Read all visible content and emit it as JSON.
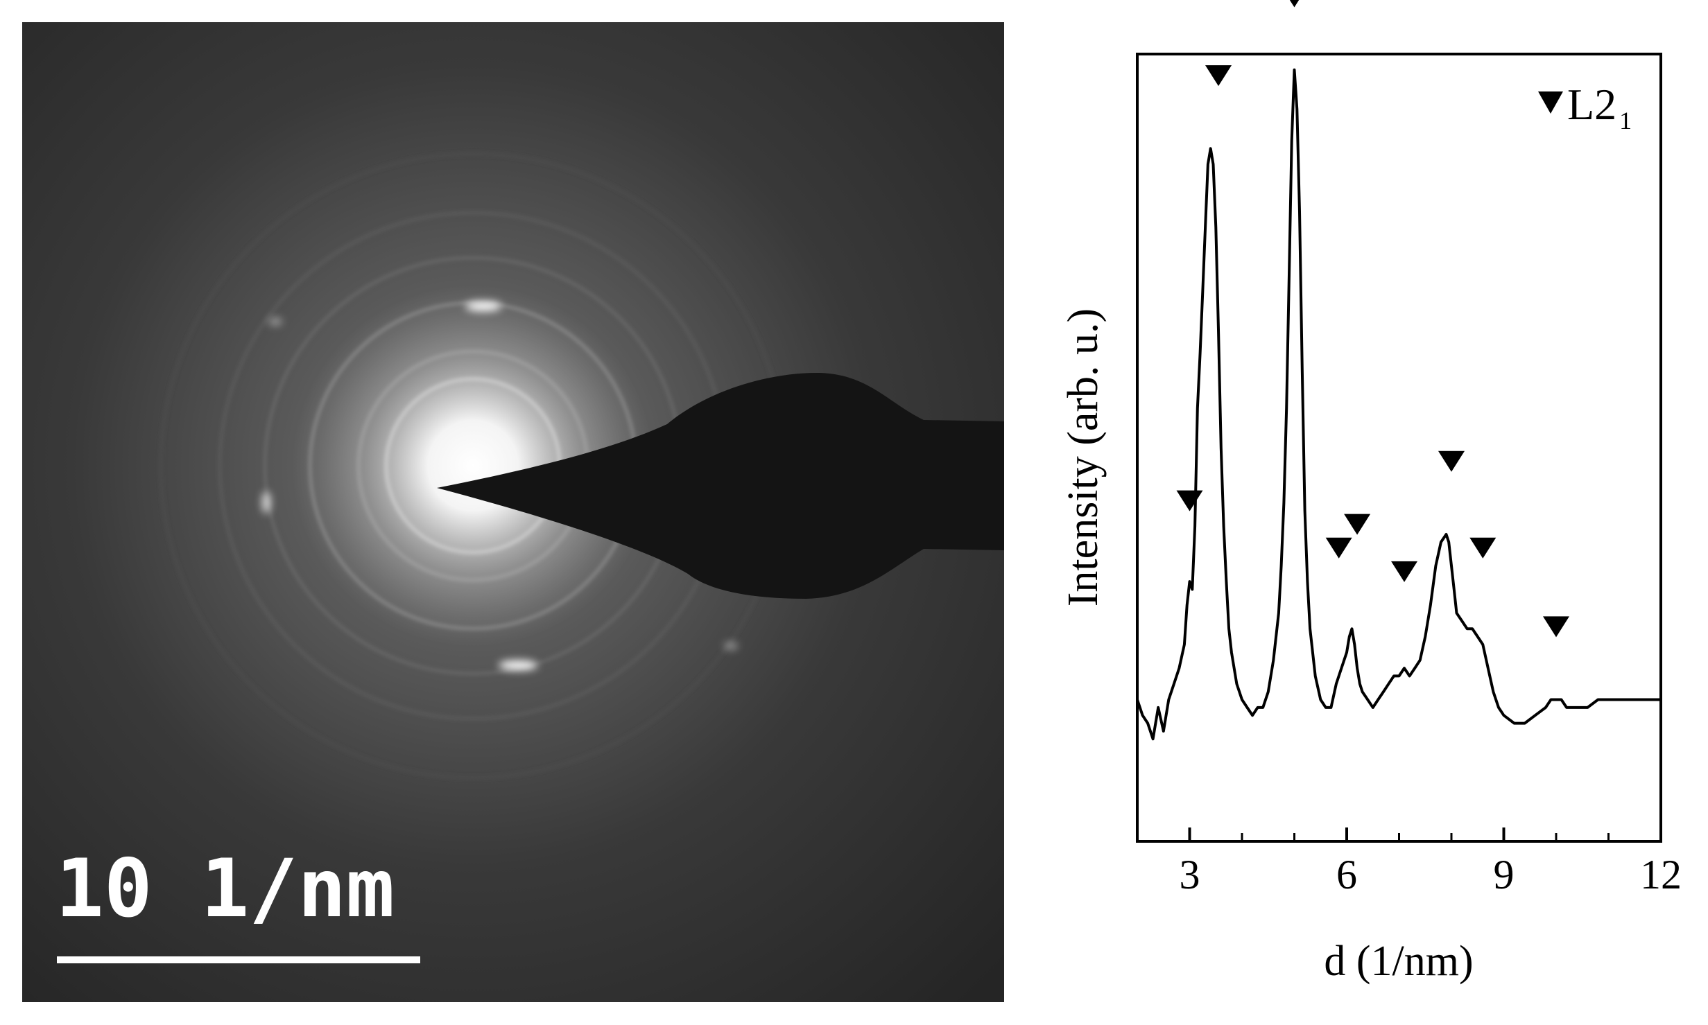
{
  "saed": {
    "scale_bar_label": "10 1/nm"
  },
  "chart_data": {
    "type": "line",
    "title": "",
    "xlabel": "d (1/nm)",
    "ylabel": "Intensity (arb. u.)",
    "xlim": [
      2,
      12
    ],
    "ylim": [
      0,
      1
    ],
    "xticks": [
      3,
      6,
      9,
      12
    ],
    "xtick_labels": [
      "3",
      "6",
      "9",
      "12"
    ],
    "y_tick_labels_shown": false,
    "grid": false,
    "legend": {
      "placement": "top-right",
      "entries": [
        {
          "marker": "down-triangle",
          "label": "L2",
          "subscript": "1"
        }
      ]
    },
    "series": [
      {
        "marker": "none",
        "color": "#000000",
        "x": [
          2.0,
          2.1,
          2.2,
          2.3,
          2.4,
          2.5,
          2.6,
          2.7,
          2.8,
          2.9,
          2.95,
          3.0,
          3.05,
          3.1,
          3.15,
          3.2,
          3.25,
          3.3,
          3.35,
          3.4,
          3.45,
          3.5,
          3.55,
          3.6,
          3.65,
          3.7,
          3.75,
          3.8,
          3.9,
          4.0,
          4.1,
          4.2,
          4.3,
          4.4,
          4.5,
          4.6,
          4.7,
          4.75,
          4.8,
          4.85,
          4.9,
          4.95,
          5.0,
          5.05,
          5.1,
          5.15,
          5.2,
          5.25,
          5.3,
          5.4,
          5.5,
          5.6,
          5.7,
          5.8,
          5.9,
          6.0,
          6.05,
          6.1,
          6.15,
          6.2,
          6.25,
          6.3,
          6.4,
          6.5,
          6.6,
          6.7,
          6.8,
          6.9,
          7.0,
          7.1,
          7.2,
          7.3,
          7.4,
          7.5,
          7.6,
          7.7,
          7.8,
          7.9,
          7.95,
          8.0,
          8.05,
          8.1,
          8.2,
          8.3,
          8.4,
          8.5,
          8.6,
          8.7,
          8.8,
          8.9,
          9.0,
          9.2,
          9.4,
          9.6,
          9.8,
          9.9,
          10.0,
          10.1,
          10.2,
          10.4,
          10.6,
          10.8,
          11.0,
          11.2,
          11.4,
          11.6,
          11.8,
          12.0
        ],
        "y": [
          0.18,
          0.16,
          0.15,
          0.13,
          0.17,
          0.14,
          0.18,
          0.2,
          0.22,
          0.25,
          0.3,
          0.33,
          0.32,
          0.4,
          0.55,
          0.62,
          0.7,
          0.78,
          0.86,
          0.88,
          0.86,
          0.78,
          0.65,
          0.5,
          0.4,
          0.33,
          0.27,
          0.24,
          0.2,
          0.18,
          0.17,
          0.16,
          0.17,
          0.17,
          0.19,
          0.23,
          0.29,
          0.35,
          0.43,
          0.55,
          0.72,
          0.89,
          0.98,
          0.93,
          0.8,
          0.6,
          0.42,
          0.33,
          0.27,
          0.21,
          0.18,
          0.17,
          0.17,
          0.2,
          0.22,
          0.24,
          0.26,
          0.27,
          0.25,
          0.22,
          0.2,
          0.19,
          0.18,
          0.17,
          0.18,
          0.19,
          0.2,
          0.21,
          0.21,
          0.22,
          0.21,
          0.22,
          0.23,
          0.26,
          0.3,
          0.35,
          0.38,
          0.39,
          0.38,
          0.35,
          0.32,
          0.29,
          0.28,
          0.27,
          0.27,
          0.26,
          0.25,
          0.22,
          0.19,
          0.17,
          0.16,
          0.15,
          0.15,
          0.16,
          0.17,
          0.18,
          0.18,
          0.18,
          0.17,
          0.17,
          0.17,
          0.18,
          0.18,
          0.18,
          0.18,
          0.18,
          0.18,
          0.18
        ]
      }
    ],
    "annotations": {
      "marker": "down-triangle",
      "peaks": [
        {
          "x": 3.0,
          "y": 0.4
        },
        {
          "x": 3.55,
          "y": 0.94
        },
        {
          "x": 5.0,
          "y": 1.04
        },
        {
          "x": 5.85,
          "y": 0.34
        },
        {
          "x": 6.2,
          "y": 0.37
        },
        {
          "x": 7.1,
          "y": 0.31
        },
        {
          "x": 8.0,
          "y": 0.45
        },
        {
          "x": 8.6,
          "y": 0.34
        },
        {
          "x": 10.0,
          "y": 0.24
        }
      ]
    }
  }
}
